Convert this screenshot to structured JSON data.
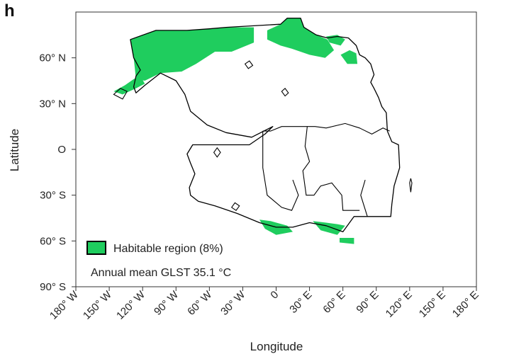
{
  "panel_label": "h",
  "colors": {
    "habitable": "#1fcd5e",
    "coast": "#000000",
    "frame": "#333333"
  },
  "legend": {
    "habitable_label": "Habitable region (8%)",
    "annotation": "Annual mean GLST 35.1 °C"
  },
  "chart_data": {
    "type": "map",
    "projection": "equirectangular",
    "xlabel": "Longitude",
    "ylabel": "Latitude",
    "xlim": [
      -180,
      180
    ],
    "ylim": [
      -90,
      90
    ],
    "xticks": [
      {
        "value": -180,
        "label": "180° W"
      },
      {
        "value": -150,
        "label": "150° W"
      },
      {
        "value": -120,
        "label": "120° W"
      },
      {
        "value": -90,
        "label": "90° W"
      },
      {
        "value": -60,
        "label": "60° W"
      },
      {
        "value": -30,
        "label": "30° W"
      },
      {
        "value": 0,
        "label": "0"
      },
      {
        "value": 30,
        "label": "30° E"
      },
      {
        "value": 60,
        "label": "60° E"
      },
      {
        "value": 90,
        "label": "90° E"
      },
      {
        "value": 120,
        "label": "120° E"
      },
      {
        "value": 150,
        "label": "150° E"
      },
      {
        "value": 180,
        "label": "180° E"
      }
    ],
    "yticks": [
      {
        "value": 60,
        "label": "60° N"
      },
      {
        "value": 30,
        "label": "30° N"
      },
      {
        "value": 0,
        "label": "O"
      },
      {
        "value": -30,
        "label": "30° S"
      },
      {
        "value": -60,
        "label": "60° S"
      },
      {
        "value": -90,
        "label": "90° S"
      }
    ],
    "supercontinent_outline": [
      [
        -131,
        72
      ],
      [
        -108,
        78
      ],
      [
        -80,
        78
      ],
      [
        -60,
        79
      ],
      [
        -45,
        80
      ],
      [
        4,
        82
      ],
      [
        10,
        86
      ],
      [
        22,
        86
      ],
      [
        25,
        80
      ],
      [
        36,
        75
      ],
      [
        46,
        73
      ],
      [
        55,
        74
      ],
      [
        65,
        73
      ],
      [
        72,
        68
      ],
      [
        75,
        62
      ],
      [
        80,
        60
      ],
      [
        85,
        56
      ],
      [
        88,
        49
      ],
      [
        85,
        44
      ],
      [
        88,
        40
      ],
      [
        92,
        34
      ],
      [
        95,
        28
      ],
      [
        99,
        24
      ],
      [
        100,
        12
      ],
      [
        104,
        5
      ],
      [
        110,
        3
      ],
      [
        111,
        -12
      ],
      [
        106,
        -24
      ],
      [
        104,
        -36
      ],
      [
        103,
        -44
      ],
      [
        90,
        -44
      ],
      [
        70,
        -44
      ],
      [
        60,
        -54
      ],
      [
        45,
        -50
      ],
      [
        30,
        -48
      ],
      [
        15,
        -51
      ],
      [
        0,
        -51
      ],
      [
        -15,
        -48
      ],
      [
        -35,
        -42
      ],
      [
        -55,
        -37
      ],
      [
        -70,
        -34
      ],
      [
        -77,
        -30
      ],
      [
        -78,
        -25
      ],
      [
        -73,
        -16
      ],
      [
        -77,
        -9
      ],
      [
        -80,
        -3
      ],
      [
        -75,
        3
      ],
      [
        -60,
        3
      ],
      [
        -38,
        3
      ],
      [
        -24,
        3
      ],
      [
        -10,
        10
      ],
      [
        -3,
        15
      ],
      [
        -22,
        8
      ],
      [
        -45,
        11
      ],
      [
        -62,
        16
      ],
      [
        -77,
        25
      ],
      [
        -82,
        36
      ],
      [
        -90,
        45
      ],
      [
        -104,
        50
      ],
      [
        -118,
        42
      ],
      [
        -126,
        37
      ],
      [
        -128,
        41
      ],
      [
        -126,
        48
      ],
      [
        -122,
        52
      ],
      [
        -128,
        60
      ],
      [
        -131,
        72
      ]
    ],
    "inner_lines": [
      [
        [
          -12,
          12
        ],
        [
          -5,
          12
        ],
        [
          5,
          15
        ],
        [
          22,
          15
        ],
        [
          35,
          15
        ],
        [
          45,
          14
        ],
        [
          62,
          17
        ],
        [
          75,
          14
        ],
        [
          86,
          10
        ],
        [
          96,
          14
        ],
        [
          102,
          12
        ]
      ],
      [
        [
          28,
          15
        ],
        [
          26,
          2
        ],
        [
          30,
          -8
        ],
        [
          24,
          -14
        ],
        [
          27,
          -30
        ],
        [
          34,
          -30
        ],
        [
          40,
          -24
        ],
        [
          50,
          -22
        ],
        [
          59,
          -30
        ],
        [
          60,
          -40
        ],
        [
          75,
          -40
        ]
      ],
      [
        [
          -12,
          12
        ],
        [
          -12,
          -12
        ],
        [
          -8,
          -30
        ],
        [
          5,
          -38
        ],
        [
          14,
          -40
        ],
        [
          20,
          -30
        ],
        [
          15,
          -20
        ]
      ],
      [
        [
          80,
          -20
        ],
        [
          76,
          -30
        ],
        [
          82,
          -44
        ]
      ]
    ],
    "islands": [
      [
        [
          -146,
          36
        ],
        [
          -140,
          40
        ],
        [
          -134,
          38
        ],
        [
          -138,
          33
        ],
        [
          -146,
          36
        ]
      ],
      [
        [
          -56,
          -2
        ],
        [
          -53,
          1
        ],
        [
          -50,
          -2
        ],
        [
          -53,
          -5
        ],
        [
          -56,
          -2
        ]
      ],
      [
        [
          120,
          -22
        ],
        [
          121,
          -19
        ],
        [
          122,
          -22
        ],
        [
          121,
          -28
        ],
        [
          120,
          -22
        ]
      ],
      [
        [
          -40,
          -38
        ],
        [
          -37,
          -35
        ],
        [
          -33,
          -37
        ],
        [
          -36,
          -40
        ],
        [
          -40,
          -38
        ]
      ],
      [
        [
          -28,
          56
        ],
        [
          -24,
          58
        ],
        [
          -21,
          55
        ],
        [
          -25,
          53
        ],
        [
          -28,
          56
        ]
      ],
      [
        [
          5,
          38
        ],
        [
          8,
          40
        ],
        [
          11,
          37
        ],
        [
          8,
          35
        ],
        [
          5,
          38
        ]
      ]
    ],
    "habitable_regions": [
      [
        [
          -131,
          72
        ],
        [
          -108,
          78
        ],
        [
          -80,
          78
        ],
        [
          -60,
          79
        ],
        [
          -45,
          80
        ],
        [
          -20,
          80
        ],
        [
          -20,
          70
        ],
        [
          -40,
          64
        ],
        [
          -55,
          64
        ],
        [
          -72,
          56
        ],
        [
          -85,
          51
        ],
        [
          -104,
          50
        ],
        [
          -118,
          45
        ],
        [
          -126,
          46
        ],
        [
          -128,
          60
        ],
        [
          -131,
          72
        ]
      ],
      [
        [
          4,
          82
        ],
        [
          10,
          86
        ],
        [
          22,
          86
        ],
        [
          25,
          80
        ],
        [
          36,
          75
        ],
        [
          46,
          72
        ],
        [
          52,
          65
        ],
        [
          44,
          60
        ],
        [
          30,
          62
        ],
        [
          14,
          66
        ],
        [
          4,
          68
        ],
        [
          -8,
          72
        ],
        [
          -8,
          78
        ],
        [
          4,
          82
        ]
      ],
      [
        [
          45,
          74
        ],
        [
          55,
          75
        ],
        [
          62,
          72
        ],
        [
          58,
          68
        ],
        [
          48,
          70
        ],
        [
          45,
          74
        ]
      ],
      [
        [
          58,
          62
        ],
        [
          66,
          65
        ],
        [
          72,
          63
        ],
        [
          73,
          56
        ],
        [
          64,
          56
        ],
        [
          58,
          62
        ]
      ],
      [
        [
          -146,
          38
        ],
        [
          -136,
          42
        ],
        [
          -128,
          46
        ],
        [
          -122,
          48
        ],
        [
          -118,
          43
        ],
        [
          -126,
          40
        ],
        [
          -138,
          36
        ],
        [
          -146,
          38
        ]
      ],
      [
        [
          -15,
          -46
        ],
        [
          -5,
          -47
        ],
        [
          10,
          -50
        ],
        [
          15,
          -54
        ],
        [
          0,
          -56
        ],
        [
          -10,
          -52
        ],
        [
          -15,
          -46
        ]
      ],
      [
        [
          33,
          -47
        ],
        [
          45,
          -48
        ],
        [
          55,
          -49
        ],
        [
          62,
          -50
        ],
        [
          55,
          -56
        ],
        [
          40,
          -53
        ],
        [
          33,
          -47
        ]
      ],
      [
        [
          57,
          -58
        ],
        [
          70,
          -58
        ],
        [
          70,
          -62
        ],
        [
          57,
          -61
        ],
        [
          57,
          -58
        ]
      ]
    ]
  }
}
